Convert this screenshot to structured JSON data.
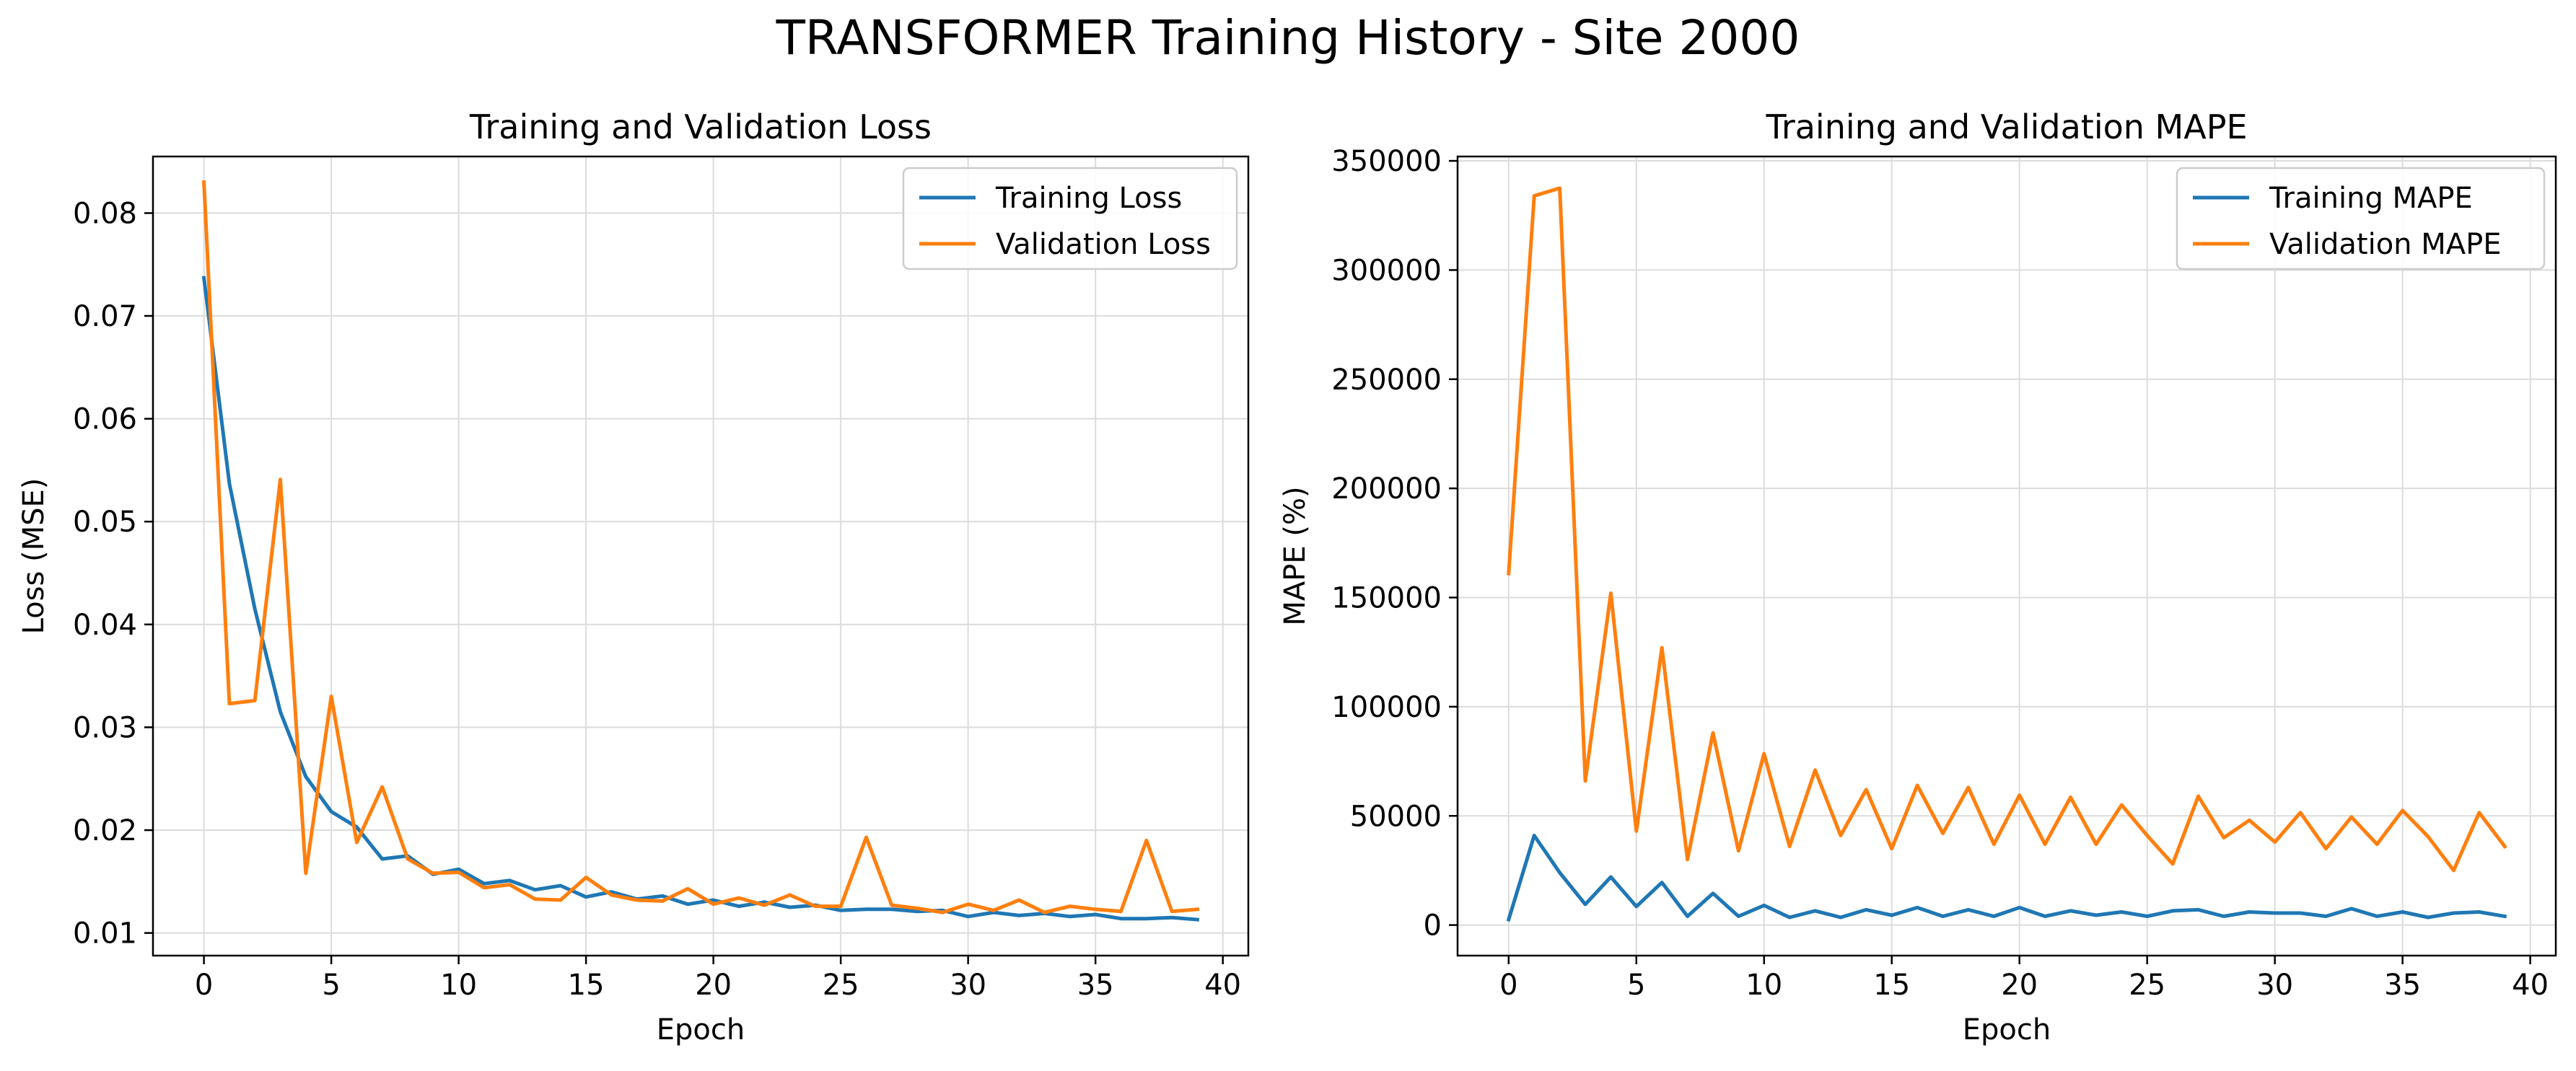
{
  "figure": {
    "title": "TRANSFORMER Training History - Site 2000"
  },
  "colors": {
    "training": "#1f77b4",
    "validation": "#ff7f0e",
    "grid": "#dcdcdc",
    "axes": "#000000"
  },
  "chart_data": [
    {
      "type": "line",
      "title": "Training and Validation Loss",
      "xlabel": "Epoch",
      "ylabel": "Loss (MSE)",
      "xlim": [
        -2,
        41
      ],
      "ylim": [
        0.0078,
        0.0855
      ],
      "xticks": [
        0,
        5,
        10,
        15,
        20,
        25,
        30,
        35,
        40
      ],
      "yticks": [
        0.01,
        0.02,
        0.03,
        0.04,
        0.05,
        0.06,
        0.07,
        0.08
      ],
      "ytick_labels": [
        "0.01",
        "0.02",
        "0.03",
        "0.04",
        "0.05",
        "0.06",
        "0.07",
        "0.08"
      ],
      "grid": true,
      "legend_position": "top-right",
      "x": [
        0,
        1,
        2,
        3,
        4,
        5,
        6,
        7,
        8,
        9,
        10,
        11,
        12,
        13,
        14,
        15,
        16,
        17,
        18,
        19,
        20,
        21,
        22,
        23,
        24,
        25,
        26,
        27,
        28,
        29,
        30,
        31,
        32,
        33,
        34,
        35,
        36,
        37,
        38,
        39
      ],
      "series": [
        {
          "name": "Training Loss",
          "values": [
            0.0737,
            0.0537,
            0.0415,
            0.0315,
            0.0252,
            0.0218,
            0.0203,
            0.0172,
            0.0175,
            0.0157,
            0.0162,
            0.0148,
            0.0151,
            0.0142,
            0.0146,
            0.0135,
            0.014,
            0.0133,
            0.0136,
            0.0128,
            0.0132,
            0.0126,
            0.013,
            0.0125,
            0.0127,
            0.0122,
            0.0123,
            0.0123,
            0.0121,
            0.0122,
            0.0116,
            0.012,
            0.0117,
            0.0119,
            0.0116,
            0.0118,
            0.0114,
            0.0114,
            0.0115,
            0.0113
          ]
        },
        {
          "name": "Validation Loss",
          "values": [
            0.083,
            0.0323,
            0.0326,
            0.0541,
            0.0158,
            0.033,
            0.0188,
            0.0242,
            0.0172,
            0.0158,
            0.0159,
            0.0144,
            0.0147,
            0.0133,
            0.0132,
            0.0154,
            0.0137,
            0.0132,
            0.0131,
            0.0143,
            0.0128,
            0.0134,
            0.0127,
            0.0137,
            0.0126,
            0.0126,
            0.0193,
            0.0127,
            0.0124,
            0.012,
            0.0128,
            0.0122,
            0.0132,
            0.012,
            0.0126,
            0.0123,
            0.0121,
            0.019,
            0.0121,
            0.0123
          ]
        }
      ]
    },
    {
      "type": "line",
      "title": "Training and Validation MAPE",
      "xlabel": "Epoch",
      "ylabel": "MAPE (%)",
      "xlim": [
        -2,
        41
      ],
      "ylim": [
        -14000,
        352000
      ],
      "xticks": [
        0,
        5,
        10,
        15,
        20,
        25,
        30,
        35,
        40
      ],
      "yticks": [
        0,
        50000,
        100000,
        150000,
        200000,
        250000,
        300000,
        350000
      ],
      "ytick_labels": [
        "0",
        "50000",
        "100000",
        "150000",
        "200000",
        "250000",
        "300000",
        "350000"
      ],
      "grid": true,
      "legend_position": "top-right",
      "x": [
        0,
        1,
        2,
        3,
        4,
        5,
        6,
        7,
        8,
        9,
        10,
        11,
        12,
        13,
        14,
        15,
        16,
        17,
        18,
        19,
        20,
        21,
        22,
        23,
        24,
        25,
        26,
        27,
        28,
        29,
        30,
        31,
        32,
        33,
        34,
        35,
        36,
        37,
        38,
        39
      ],
      "series": [
        {
          "name": "Training MAPE",
          "values": [
            2500,
            41000,
            24000,
            9500,
            22000,
            8500,
            19500,
            4000,
            14500,
            4000,
            9000,
            3500,
            6500,
            3500,
            7000,
            4500,
            8000,
            4000,
            7000,
            4000,
            8000,
            4000,
            6500,
            4500,
            6000,
            4000,
            6500,
            7000,
            4000,
            6000,
            5500,
            5500,
            4000,
            7500,
            4000,
            6000,
            3500,
            5500,
            6000,
            4000
          ]
        },
        {
          "name": "Validation MAPE",
          "values": [
            161000,
            334000,
            337500,
            66000,
            152000,
            43000,
            127000,
            30000,
            88000,
            34000,
            78500,
            36000,
            71000,
            41000,
            62000,
            35000,
            64000,
            42000,
            63000,
            37000,
            59500,
            37000,
            58500,
            37000,
            55000,
            41000,
            28000,
            59000,
            40000,
            48000,
            38000,
            51500,
            35000,
            49500,
            37000,
            52500,
            40500,
            25000,
            51500,
            36000
          ]
        }
      ]
    }
  ]
}
